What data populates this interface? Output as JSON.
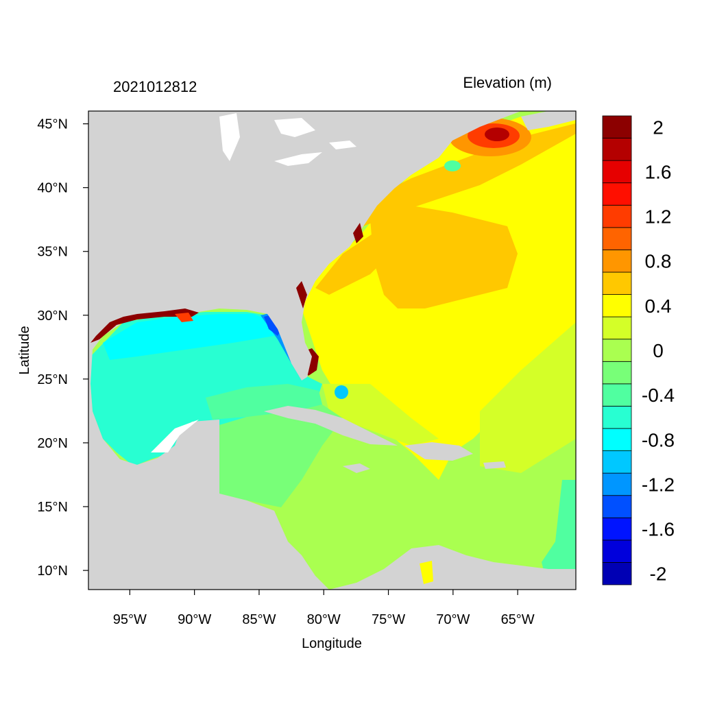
{
  "figure": {
    "timestamp": "2021012812",
    "variable_title": "Elevation (m)",
    "x_axis_label": "Longitude",
    "y_axis_label": "Latitude"
  },
  "map": {
    "lon_range": [
      -98.2,
      -60.5
    ],
    "lat_range": [
      8.5,
      46.0
    ],
    "land_color": "#d3d3d3",
    "lon_ticks": [
      {
        "value": -95,
        "label": "95°W"
      },
      {
        "value": -90,
        "label": "90°W"
      },
      {
        "value": -85,
        "label": "85°W"
      },
      {
        "value": -80,
        "label": "80°W"
      },
      {
        "value": -75,
        "label": "75°W"
      },
      {
        "value": -70,
        "label": "70°W"
      },
      {
        "value": -65,
        "label": "65°W"
      }
    ],
    "lat_ticks": [
      {
        "value": 45,
        "label": "45°N"
      },
      {
        "value": 40,
        "label": "40°N"
      },
      {
        "value": 35,
        "label": "35°N"
      },
      {
        "value": 30,
        "label": "30°N"
      },
      {
        "value": 25,
        "label": "25°N"
      },
      {
        "value": 20,
        "label": "20°N"
      },
      {
        "value": 15,
        "label": "15°N"
      },
      {
        "value": 10,
        "label": "10°N"
      }
    ]
  },
  "colorbar": {
    "colors": [
      "#0000b4",
      "#0000dc",
      "#0014ff",
      "#0050ff",
      "#0096ff",
      "#00c8ff",
      "#00ffff",
      "#28ffd2",
      "#50ffa0",
      "#78ff78",
      "#aaff50",
      "#d4ff28",
      "#ffff00",
      "#ffc800",
      "#ff9600",
      "#ff6400",
      "#ff3c00",
      "#ff0f00",
      "#e60000",
      "#b40000",
      "#8c0000"
    ],
    "labels": [
      {
        "index": 1,
        "text": "-2"
      },
      {
        "index": 3,
        "text": "-1.6"
      },
      {
        "index": 5,
        "text": "-1.2"
      },
      {
        "index": 7,
        "text": "-0.8"
      },
      {
        "index": 9,
        "text": "-0.4"
      },
      {
        "index": 11,
        "text": "0"
      },
      {
        "index": 13,
        "text": "0.4"
      },
      {
        "index": 15,
        "text": "0.8"
      },
      {
        "index": 17,
        "text": "1.2"
      },
      {
        "index": 19,
        "text": "1.6"
      },
      {
        "index": 21,
        "text": "2"
      }
    ]
  }
}
